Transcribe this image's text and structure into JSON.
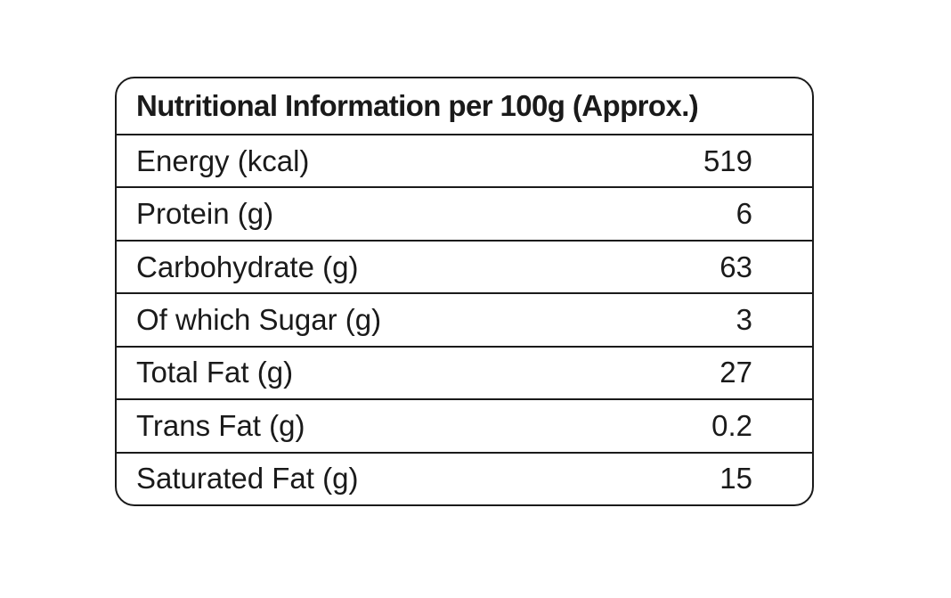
{
  "table": {
    "title": "Nutritional Information per 100g (Approx.)",
    "rows": [
      {
        "name": "Energy (kcal)",
        "value": "519"
      },
      {
        "name": "Protein (g)",
        "value": "6"
      },
      {
        "name": "Carbohydrate (g)",
        "value": "63"
      },
      {
        "name": "Of which Sugar (g)",
        "value": "3"
      },
      {
        "name": "Total Fat (g)",
        "value": "27"
      },
      {
        "name": "Trans Fat (g)",
        "value": "0.2"
      },
      {
        "name": "Saturated Fat (g)",
        "value": "15"
      }
    ]
  }
}
